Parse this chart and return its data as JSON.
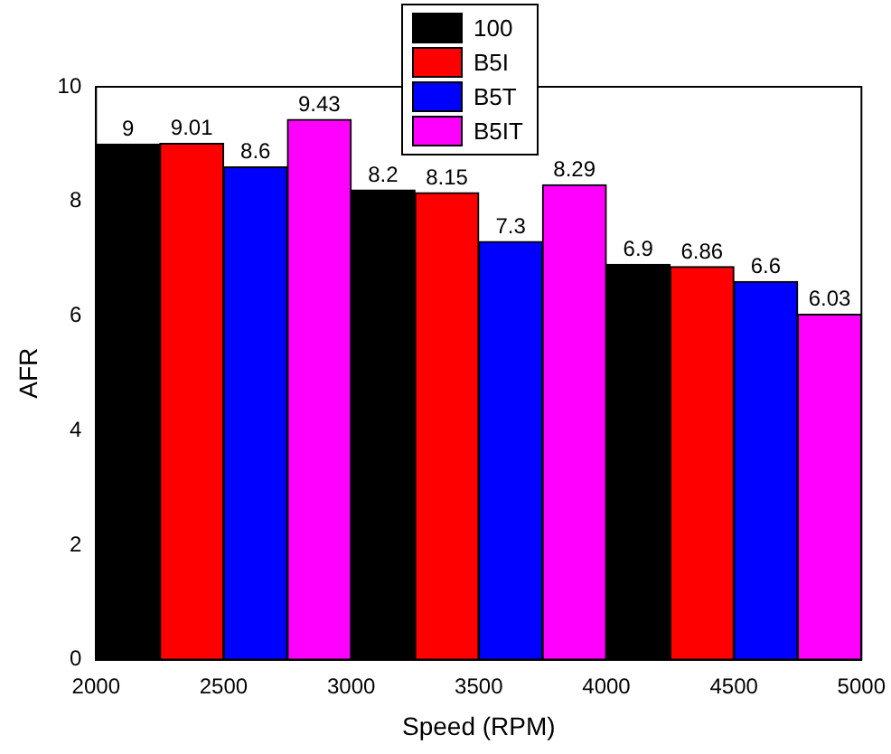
{
  "chart_data": {
    "type": "bar",
    "xlabel": "Speed (RPM)",
    "ylabel": "AFR",
    "series": [
      {
        "name": "100",
        "color": "#000000",
        "x": [
          2125,
          3125,
          4125
        ],
        "values": [
          9,
          8.2,
          6.9
        ]
      },
      {
        "name": "B5I",
        "color": "#ff0000",
        "x": [
          2375,
          3375,
          4375
        ],
        "values": [
          9.01,
          8.15,
          6.86
        ]
      },
      {
        "name": "B5T",
        "color": "#0000ff",
        "x": [
          2625,
          3625,
          4625
        ],
        "values": [
          8.6,
          7.3,
          6.6
        ]
      },
      {
        "name": "B5IT",
        "color": "#ff00ff",
        "x": [
          2875,
          3875,
          4875
        ],
        "values": [
          9.43,
          8.29,
          6.03
        ]
      }
    ],
    "xlim": [
      2000,
      5000
    ],
    "xticks": [
      2000,
      2500,
      3000,
      3500,
      4000,
      4500,
      5000
    ],
    "ylim": [
      0,
      10
    ],
    "yticks": [
      0,
      2,
      4,
      6,
      8,
      10
    ],
    "data_labels": true,
    "legend": "top",
    "grid": false
  }
}
